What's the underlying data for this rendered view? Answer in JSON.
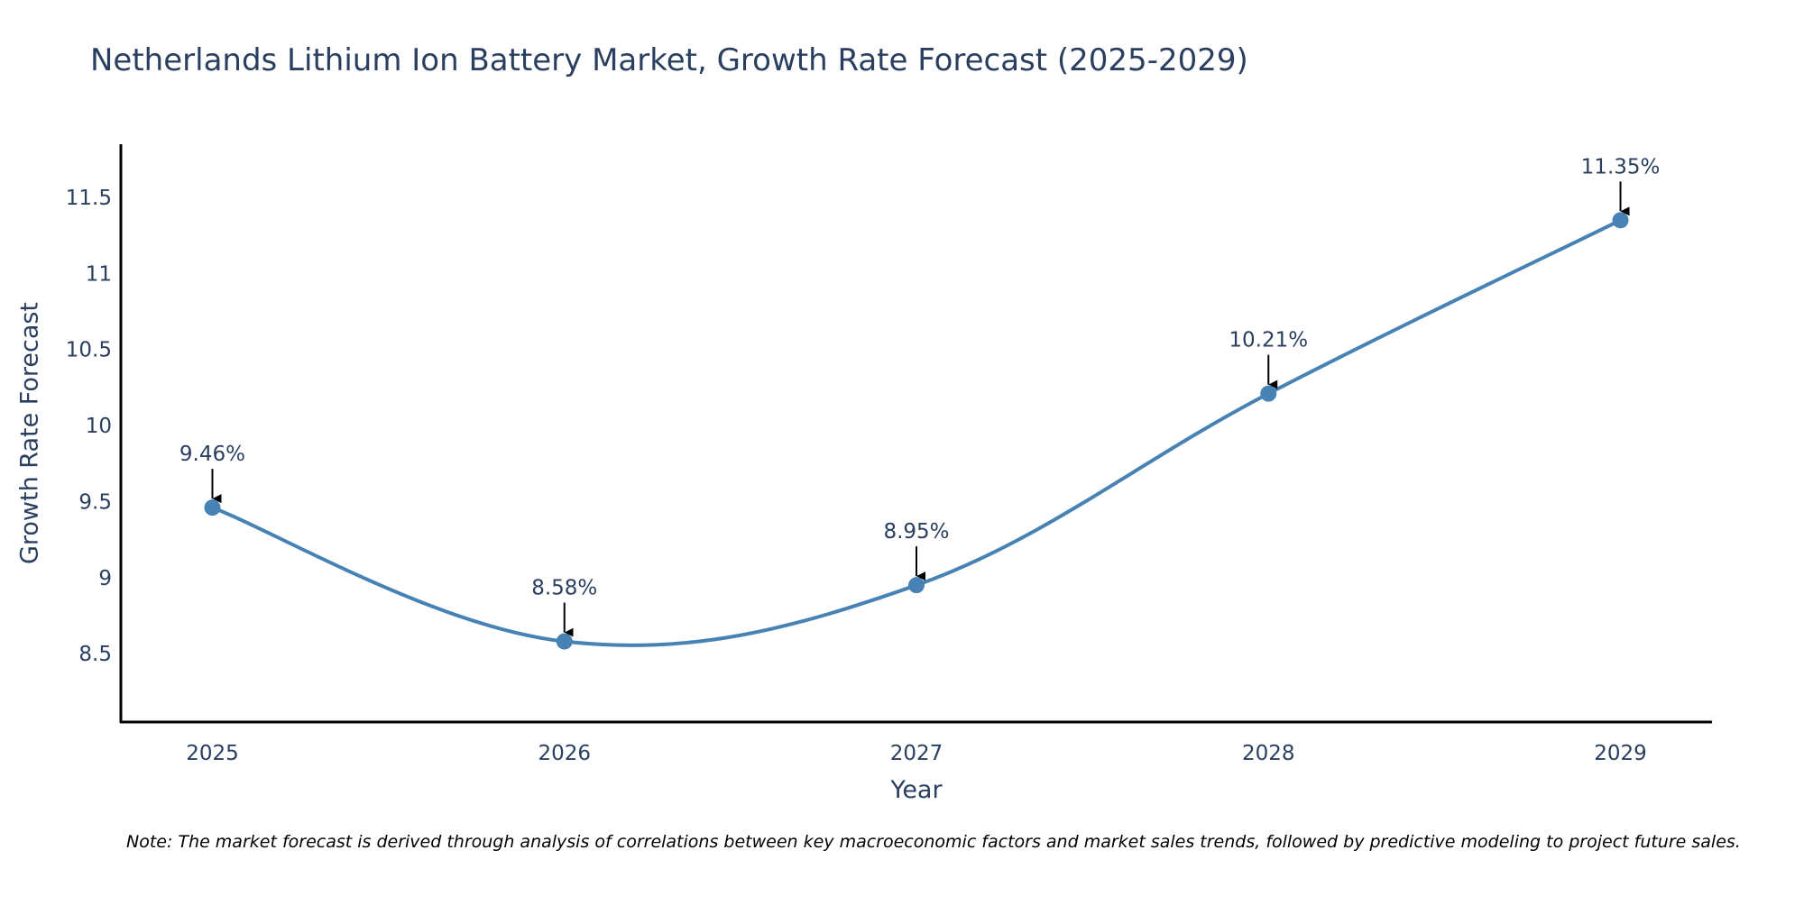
{
  "colors": {
    "line": "#4682B4",
    "marker": "#4682B4",
    "text": "#2A3F5F",
    "axis": "#000000",
    "arrow": "#000000",
    "note": "#000000"
  },
  "chart_data": {
    "type": "line",
    "title": "Netherlands Lithium Ion Battery Market, Growth Rate Forecast (2025-2029)",
    "xlabel": "Year",
    "ylabel": "Growth Rate Forecast",
    "categories": [
      "2025",
      "2026",
      "2027",
      "2028",
      "2029"
    ],
    "values": [
      9.46,
      8.58,
      8.95,
      10.21,
      11.35
    ],
    "data_labels": [
      "9.46%",
      "8.58%",
      "8.95%",
      "10.21%",
      "11.35%"
    ],
    "yticks": [
      8.5,
      9,
      9.5,
      10,
      10.5,
      11,
      11.5
    ],
    "ytick_labels": [
      "8.5",
      "9",
      "9.5",
      "10",
      "10.5",
      "11",
      "11.5"
    ],
    "ylim": [
      8.05,
      11.85
    ],
    "xlim": [
      -0.26,
      4.26
    ],
    "grid": false,
    "line_shape": "spline",
    "note": "Note: The market forecast is derived through analysis of correlations between key macroeconomic factors and market sales trends, followed by predictive modeling to project future sales."
  }
}
